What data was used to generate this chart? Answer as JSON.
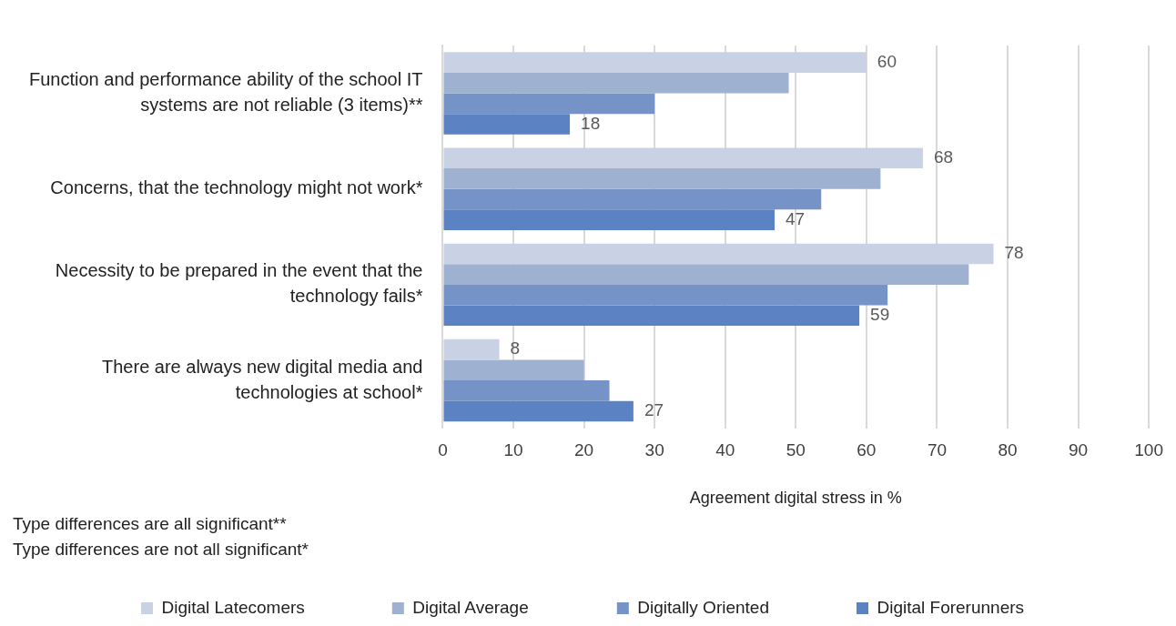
{
  "chart_data": {
    "type": "bar",
    "orientation": "horizontal",
    "xlabel": "Agreement digital stress in %",
    "categories": [
      "Function and performance ability of the school IT systems are not reliable (3 items)**",
      "Concerns, that the technology might not work*",
      "Necessity to be prepared in the event that the technology fails*",
      "There are always new digital media and technologies at school*"
    ],
    "series": [
      {
        "name": "Digital Latecomers",
        "color": "#c8d2e4",
        "values": [
          60,
          68,
          78,
          8
        ],
        "value_labels": [
          "60",
          "68",
          "78",
          "8"
        ]
      },
      {
        "name": "Digital Average",
        "color": "#9fb1d1",
        "values": [
          49,
          62,
          74.5,
          20
        ]
      },
      {
        "name": "Digitally Oriented",
        "color": "#7593c6",
        "values": [
          30,
          53.6,
          63,
          23.6
        ]
      },
      {
        "name": "Digital Forerunners",
        "color": "#5b82c2",
        "values": [
          18,
          47,
          59,
          27
        ],
        "value_labels": [
          "18",
          "47",
          "59",
          "27"
        ]
      }
    ],
    "xlim": [
      0,
      100
    ],
    "xticks": [
      0,
      10,
      20,
      30,
      40,
      50,
      60,
      70,
      80,
      90,
      100
    ],
    "grid": "x",
    "legend": "bottom",
    "annotations": [
      "Type differences are all significant**",
      "Type differences are not all significant*"
    ]
  }
}
